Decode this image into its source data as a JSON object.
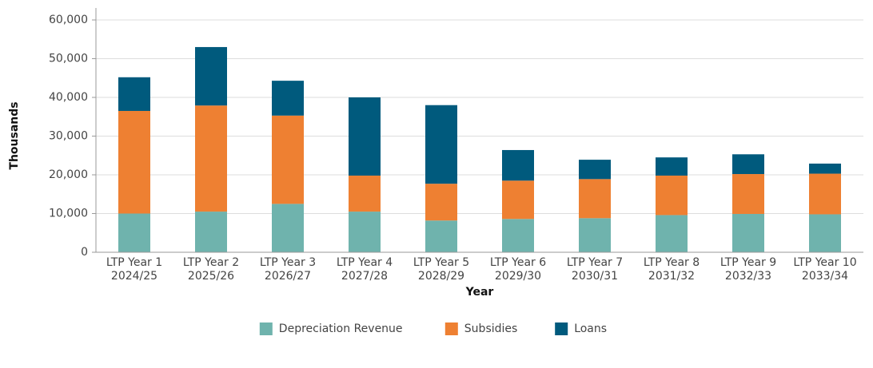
{
  "chart_data": {
    "type": "stacked_bar",
    "x_label": "Year",
    "y_label": "Thousands",
    "categories": [
      [
        "LTP Year 1",
        "2024/25"
      ],
      [
        "LTP Year 2",
        "2025/26"
      ],
      [
        "LTP Year 3",
        "2026/27"
      ],
      [
        "LTP Year 4",
        "2027/28"
      ],
      [
        "LTP Year 5",
        "2028/29"
      ],
      [
        "LTP Year 6",
        "2029/30"
      ],
      [
        "LTP Year 7",
        "2030/31"
      ],
      [
        "LTP Year 8",
        "2031/32"
      ],
      [
        "LTP Year 9",
        "2032/33"
      ],
      [
        "LTP Year 10",
        "2033/34"
      ]
    ],
    "series": [
      {
        "name": "Depreciation Revenue",
        "color": "#6fb3ad",
        "values": [
          10000,
          10500,
          12500,
          10500,
          8200,
          8600,
          8800,
          9600,
          9900,
          9800
        ]
      },
      {
        "name": "Subsidies",
        "color": "#ee8032",
        "values": [
          26500,
          27400,
          22800,
          9300,
          9500,
          9900,
          10100,
          10200,
          10300,
          10500
        ]
      },
      {
        "name": "Loans",
        "color": "#005a7d",
        "values": [
          8700,
          15100,
          9000,
          20200,
          20300,
          7900,
          5000,
          4700,
          5100,
          2600
        ]
      }
    ],
    "ylim": [
      0,
      60000
    ],
    "yticks": [
      0,
      {
        "value": 10000,
        "label": "10,000"
      },
      {
        "value": 20000,
        "label": "20,000"
      },
      {
        "value": 30000,
        "label": "30,000"
      },
      {
        "value": 40000,
        "label": "40,000"
      },
      {
        "value": 50000,
        "label": "50,000"
      },
      {
        "value": 60000,
        "label": "60,000"
      }
    ],
    "grid": true,
    "legend": "bottom"
  }
}
